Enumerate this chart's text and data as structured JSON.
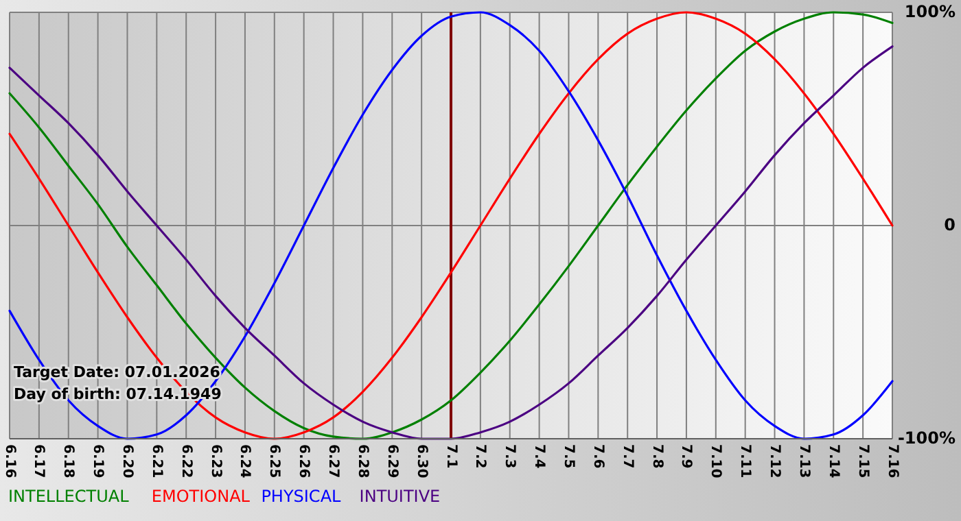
{
  "chart_data": {
    "type": "line",
    "categories": [
      "6.16",
      "6.17",
      "6.18",
      "6.19",
      "6.20",
      "6.21",
      "6.22",
      "6.23",
      "6.24",
      "6.25",
      "6.26",
      "6.27",
      "6.28",
      "6.29",
      "6.30",
      "7.1",
      "7.2",
      "7.3",
      "7.4",
      "7.5",
      "7.6",
      "7.7",
      "7.8",
      "7.9",
      "7.10",
      "7.11",
      "7.12",
      "7.13",
      "7.14",
      "7.15",
      "7.16"
    ],
    "series": [
      {
        "name": "INTELLECTUAL",
        "color": "#008000",
        "values": [
          62,
          46,
          28,
          10,
          -10,
          -28,
          -46,
          -62,
          -76,
          -87,
          -95,
          -99,
          -100,
          -97,
          -91,
          -82,
          -69,
          -54,
          -37,
          -19,
          0,
          19,
          37,
          54,
          69,
          82,
          91,
          97,
          100,
          99,
          95
        ]
      },
      {
        "name": "EMOTIONAL",
        "color": "#ff0000",
        "values": [
          43,
          22,
          0,
          -22,
          -43,
          -62,
          -78,
          -90,
          -97,
          -100,
          -97,
          -90,
          -78,
          -62,
          -43,
          -22,
          0,
          22,
          43,
          62,
          78,
          90,
          97,
          100,
          97,
          90,
          78,
          62,
          43,
          22,
          0
        ]
      },
      {
        "name": "PHYSICAL",
        "color": "#0000ff",
        "values": [
          -40,
          -63,
          -82,
          -94,
          -100,
          -98,
          -89,
          -73,
          -52,
          -27,
          0,
          27,
          52,
          73,
          89,
          98,
          100,
          94,
          82,
          63,
          40,
          14,
          -14,
          -40,
          -63,
          -82,
          -94,
          -100,
          -98,
          -89,
          -73
        ]
      },
      {
        "name": "INTUITIVE",
        "color": "#4b0082",
        "values": [
          74,
          61,
          48,
          33,
          16,
          0,
          -16,
          -33,
          -48,
          -61,
          -74,
          -84,
          -92,
          -97,
          -100,
          -100,
          -97,
          -92,
          -84,
          -74,
          -61,
          -48,
          -33,
          -16,
          0,
          16,
          33,
          48,
          61,
          74,
          84
        ]
      }
    ],
    "ylim": [
      -100,
      100
    ],
    "yticks": [
      {
        "value": -100,
        "label": "-100%"
      },
      0,
      {
        "value": 100,
        "label": "100%"
      }
    ],
    "grid": true,
    "legend": "bottom",
    "ref_lines": [
      {
        "axis": "x",
        "value": "7.1",
        "color": "#800000"
      }
    ],
    "annotations": [
      "Target Date: 07.01.2026",
      "Day of birth: 07.14.1949"
    ]
  }
}
